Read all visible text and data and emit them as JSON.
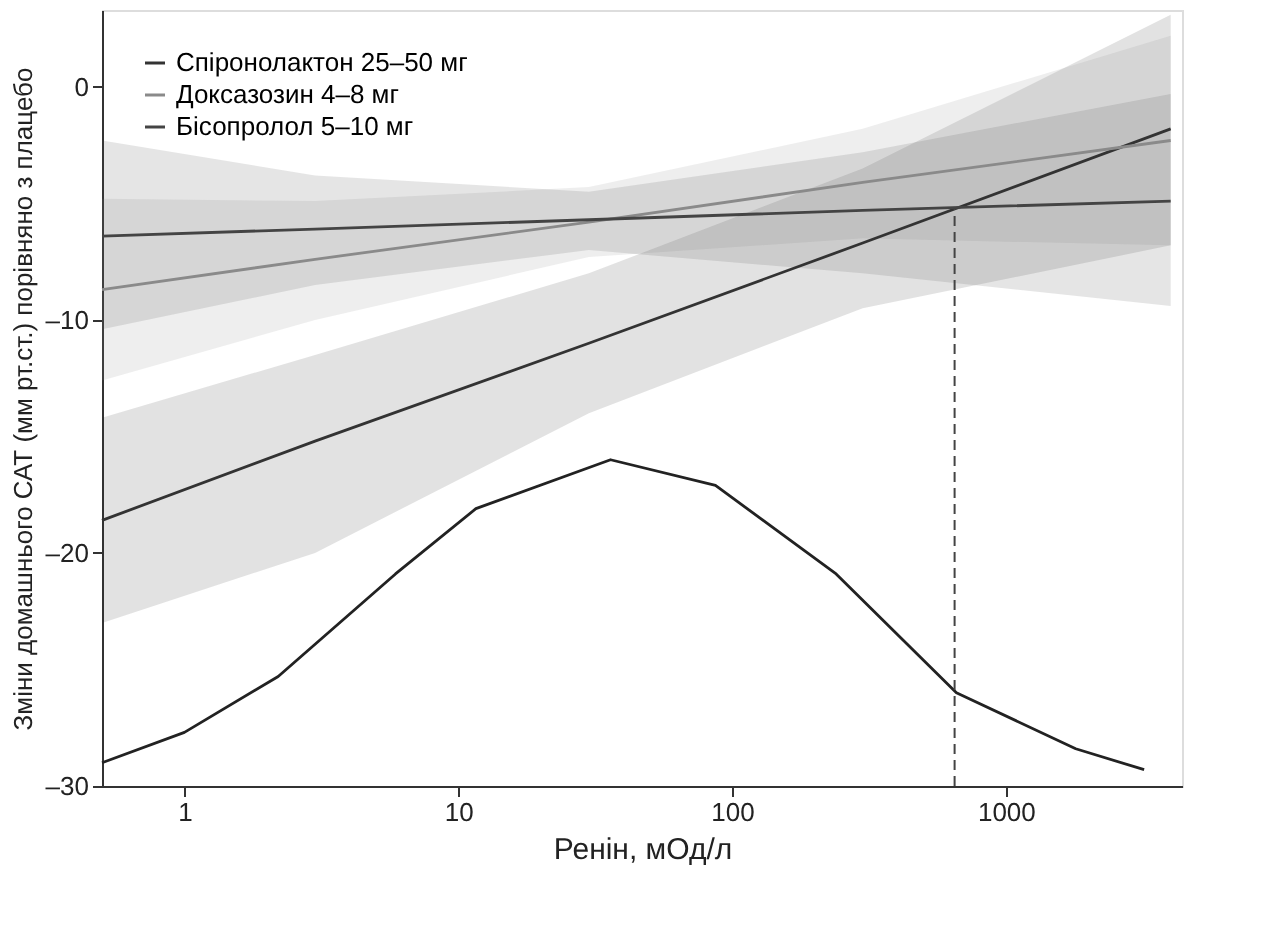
{
  "chart_data": {
    "type": "line",
    "xlabel": "Ренін, мОд/л",
    "ylabel": "Зміни домашнього САТ (мм рт.ст.) порівняно з плацебо",
    "log": "x",
    "xlim": [
      0.5,
      4400
    ],
    "xticks": [
      1,
      10,
      100,
      1000
    ],
    "ylim": [
      -30,
      3.3
    ],
    "yticks": [
      {
        "value": 0,
        "label": "0"
      },
      {
        "value": -10,
        "label": "–10"
      },
      {
        "value": -20,
        "label": "–20"
      },
      {
        "value": -30,
        "label": "–30"
      }
    ],
    "grid": false,
    "legend": "top left",
    "marker": "none",
    "series": [
      {
        "name": "Спіронолактон 25–50 мг",
        "color": "#333333",
        "x": [
          0.5,
          3,
          30,
          300,
          4000
        ],
        "values": [
          -18.6,
          -15.2,
          -11.0,
          -6.7,
          -1.8
        ],
        "lower": [
          -23,
          -20,
          -14,
          -9.5,
          -6.8
        ],
        "upper": [
          -14.2,
          -11.5,
          -8,
          -3.5,
          3.1
        ]
      },
      {
        "name": "Доксазозин 4–8 мг",
        "color": "#8a8a8a",
        "x": [
          0.5,
          3,
          30,
          300,
          4000
        ],
        "values": [
          -8.7,
          -7.4,
          -5.8,
          -4.1,
          -2.3
        ],
        "lower": [
          -12.6,
          -10,
          -7.3,
          -6.5,
          -6.8
        ],
        "upper": [
          -4.8,
          -4.9,
          -4.3,
          -1.8,
          2.2
        ]
      },
      {
        "name": "Бісопролол 5–10 мг",
        "color": "#444444",
        "x": [
          0.5,
          3,
          30,
          300,
          4000
        ],
        "values": [
          -6.4,
          -6.1,
          -5.7,
          -5.3,
          -4.9
        ],
        "lower": [
          -10.4,
          -8.5,
          -7,
          -8,
          -9.4
        ],
        "upper": [
          -2.3,
          -3.8,
          -4.5,
          -2.8,
          -0.3
        ]
      },
      {
        "color": "#222222",
        "x": [
          0.5,
          1,
          2.2,
          5.9,
          11.6,
          36,
          87,
          240,
          660,
          1800,
          3200
        ],
        "values": [
          -29.0,
          -27.7,
          -25.3,
          -20.9,
          -18.1,
          -16.0,
          -17.1,
          -20.9,
          -26.0,
          -28.4,
          -29.3
        ]
      }
    ],
    "ref_lines": [
      {
        "axis": "x",
        "value": 650,
        "line_style": "dashed",
        "color": "#444444"
      }
    ]
  }
}
